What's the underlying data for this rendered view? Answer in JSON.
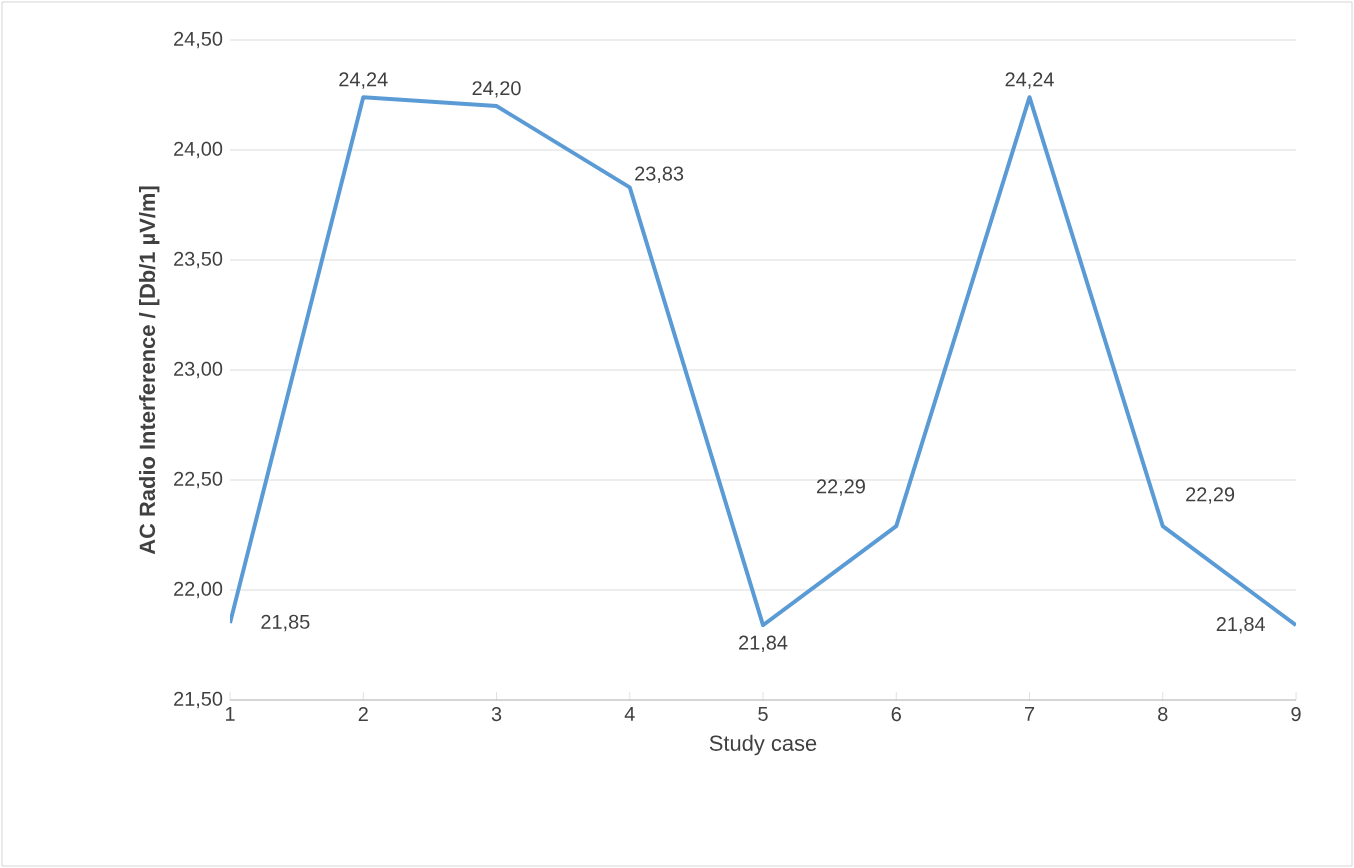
{
  "chart_data": {
    "type": "line",
    "xlabel": "Study case",
    "ylabel": "AC Radio Interference / [Db/1 µV/m]",
    "categories": [
      "1",
      "2",
      "3",
      "4",
      "5",
      "6",
      "7",
      "8",
      "9"
    ],
    "series": [
      {
        "color": "#5b9bd5",
        "values": [
          21.85,
          24.24,
          24.2,
          23.83,
          21.84,
          22.29,
          24.24,
          22.29,
          21.84
        ],
        "value_labels": [
          "21,85",
          "24,24",
          "24,20",
          "23,83",
          "21,84",
          "22,29",
          "24,24",
          "22,29",
          "21,84"
        ]
      }
    ],
    "ylim": [
      21.5,
      24.5
    ],
    "yticks": [
      {
        "value": 21.5,
        "label": "21,50"
      },
      {
        "value": 22.0,
        "label": "22,00"
      },
      {
        "value": 22.5,
        "label": "22,50"
      },
      {
        "value": 23.0,
        "label": "23,00"
      },
      {
        "value": 23.5,
        "label": "23,50"
      },
      {
        "value": 24.0,
        "label": "24,00"
      },
      {
        "value": 24.5,
        "label": "24,50"
      }
    ],
    "grid": "y",
    "marker": "none",
    "line_style": "solid"
  }
}
